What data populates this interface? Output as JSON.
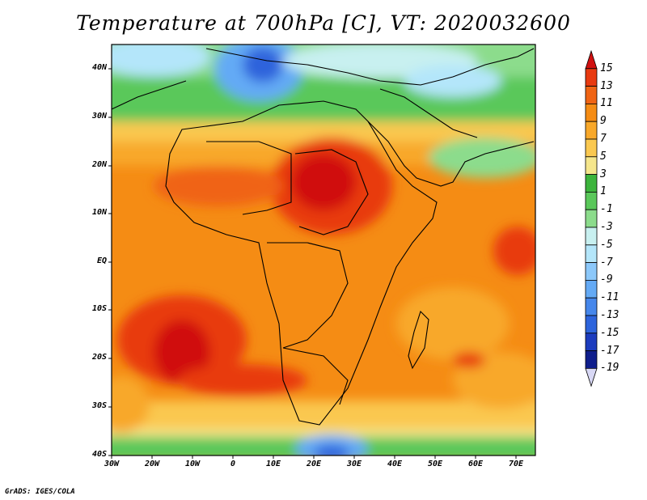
{
  "title": "Temperature at 700hPa [C], VT: 2020032600",
  "credit": "GrADS: IGES/COLA",
  "map": {
    "lat_labels": [
      "40N",
      "30N",
      "20N",
      "10N",
      "EQ",
      "10S",
      "20S",
      "30S",
      "40S"
    ],
    "lon_labels": [
      "30W",
      "20W",
      "10W",
      "0",
      "10E",
      "20E",
      "30E",
      "40E",
      "50E",
      "60E",
      "70E"
    ]
  },
  "colorbar": {
    "labels": [
      "15",
      "13",
      "11",
      "9",
      "7",
      "5",
      "3",
      "1",
      "-1",
      "-3",
      "-5",
      "-7",
      "-9",
      "-11",
      "-13",
      "-15",
      "-17",
      "-19"
    ],
    "colors": [
      "#d01010",
      "#e83a10",
      "#f06414",
      "#f58c14",
      "#f8a82a",
      "#fac850",
      "#f5e68c",
      "#3cb43c",
      "#5ac85a",
      "#8cdc8c",
      "#c8f0f0",
      "#b4e6fa",
      "#8cc8fa",
      "#64aaf5",
      "#4687eb",
      "#2d64dc",
      "#1c3cbe",
      "#0f1e8c",
      "#d8d8f5"
    ]
  }
}
